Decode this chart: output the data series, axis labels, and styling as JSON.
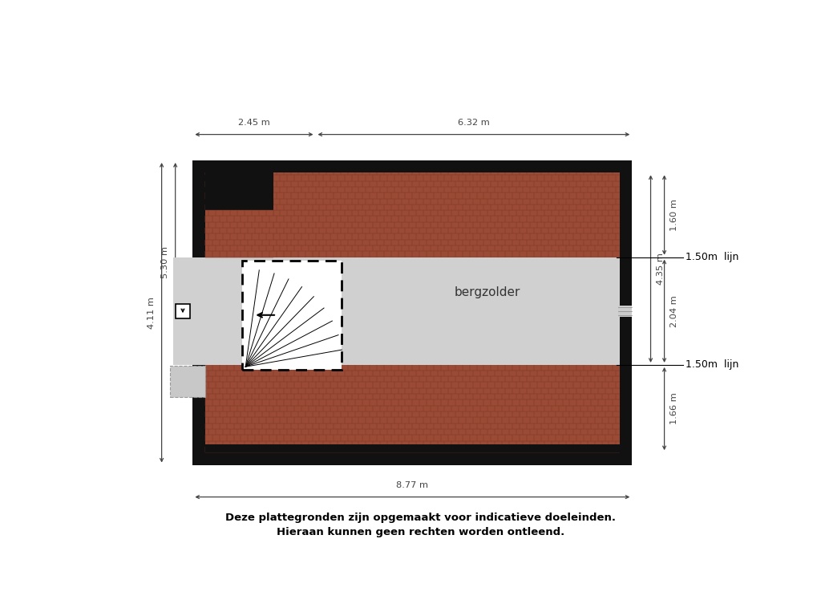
{
  "bg_color": "#ffffff",
  "footer_text1": "Deze plattegronden zijn opgemaakt voor indicatieve doeleinden.",
  "footer_text2": "Hieraan kunnen geen rechten worden ontleend.",
  "room_label": "bergzolder",
  "dim_top_left": "2.45 m",
  "dim_top_right": "6.32 m",
  "dim_bottom": "8.77 m",
  "dim_left_outer": "4.11 m",
  "dim_left_inner": "5.30 m",
  "dim_right_top": "1.60 m",
  "dim_right_mid": "4.35 m",
  "dim_right_mid2": "2.04 m",
  "dim_right_bot": "1.66 m",
  "label_right1": "1.50m  lijn",
  "label_right2": "1.50m  lijn",
  "roof_color": "#9B4B35",
  "roof_dark": "#7A3828",
  "wall_color": "#111111",
  "floor_color": "#d0d0d0",
  "dim_line_color": "#444444"
}
